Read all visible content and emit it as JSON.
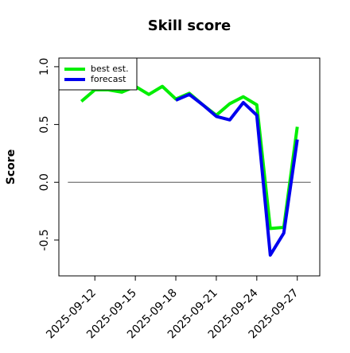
{
  "chart_data": {
    "type": "line",
    "title": "Skill score",
    "y_label": "Score",
    "x": [
      "2025-09-11",
      "2025-09-12",
      "2025-09-13",
      "2025-09-14",
      "2025-09-15",
      "2025-09-16",
      "2025-09-17",
      "2025-09-18",
      "2025-09-19",
      "2025-09-20",
      "2025-09-21",
      "2025-09-22",
      "2025-09-23",
      "2025-09-24",
      "2025-09-25",
      "2025-09-26",
      "2025-09-27"
    ],
    "series": [
      {
        "name": "best est.",
        "color": "#00ee00",
        "values": [
          0.7,
          0.8,
          0.8,
          0.78,
          0.83,
          0.76,
          0.83,
          0.72,
          0.77,
          0.67,
          0.58,
          0.68,
          0.74,
          0.67,
          -0.4,
          -0.39,
          0.48
        ]
      },
      {
        "name": "forecast",
        "color": "#0000ee",
        "values": [
          null,
          null,
          null,
          null,
          null,
          null,
          null,
          0.71,
          0.76,
          0.67,
          0.57,
          0.54,
          0.69,
          0.58,
          -0.63,
          -0.44,
          0.37
        ]
      }
    ],
    "reference_line": {
      "y": 0,
      "x": [
        "2025-09-10",
        "2025-09-28"
      ],
      "color": "#555555"
    },
    "xlim": [
      "2025-09-09T08:00",
      "2025-09-28T16:00"
    ],
    "ylim": [
      -0.81,
      1.075
    ],
    "xticks": [
      "2025-09-12",
      "2025-09-15",
      "2025-09-18",
      "2025-09-21",
      "2025-09-24",
      "2025-09-27"
    ],
    "xtick_colors": [
      "#000000",
      "#000000",
      "#228b22",
      "#000000",
      "#000000",
      "#000000"
    ],
    "yticks": [
      -0.5,
      {
        "value": 0,
        "label": "0.0"
      },
      0.5,
      {
        "value": 1,
        "label": "1.0"
      }
    ],
    "legend": "upper left"
  }
}
